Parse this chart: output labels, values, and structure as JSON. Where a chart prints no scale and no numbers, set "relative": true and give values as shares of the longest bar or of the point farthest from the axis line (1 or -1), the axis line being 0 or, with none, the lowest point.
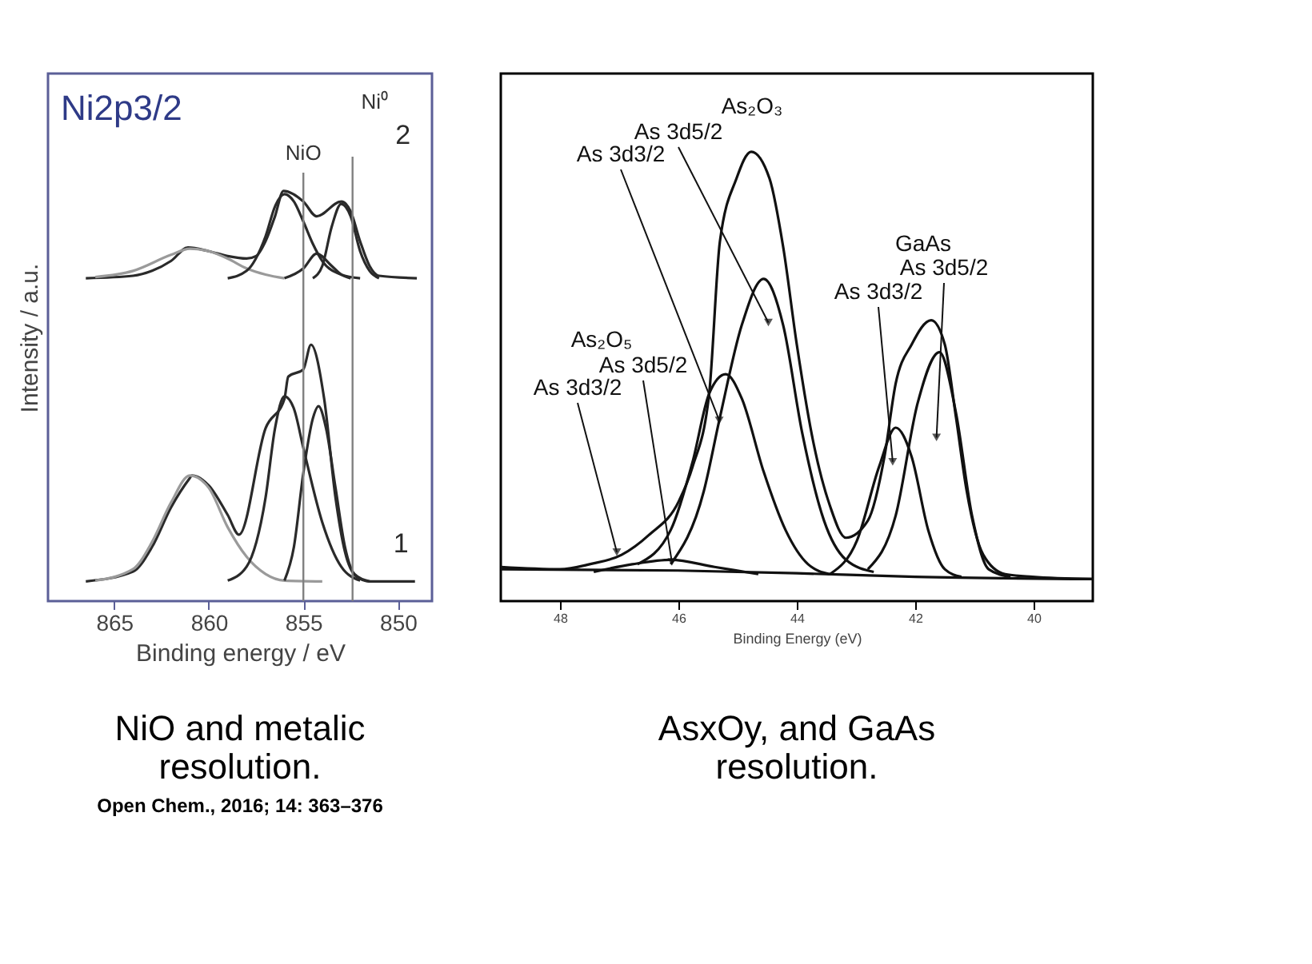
{
  "chart_data": [
    {
      "type": "line",
      "relative": true,
      "xlabel": "Binding energy / eV",
      "ylabel": "Intensity / a.u.",
      "xlim": [
        868.5,
        848.2
      ],
      "xticks": [
        865,
        860,
        855,
        850
      ],
      "grid": false,
      "marker": "none",
      "line_style": "solid",
      "series": [
        {
          "name": "1",
          "color": "#2a2a2a",
          "x": [
            866.5,
            864,
            863,
            862,
            861,
            860.9,
            860,
            859,
            858.4,
            857,
            856,
            855.8,
            855,
            854.6,
            853.9,
            853.3,
            852.8,
            852.2,
            851.5,
            849.1
          ],
          "values": [
            0.048,
            0.072,
            0.132,
            0.228,
            0.3,
            0.306,
            0.282,
            0.21,
            0.162,
            0.421,
            0.493,
            0.547,
            0.565,
            0.625,
            0.493,
            0.252,
            0.12,
            0.06,
            0.048,
            0.048
          ]
        },
        {
          "color": "#9a9a9a",
          "x": [
            866,
            864,
            863,
            862,
            861,
            860,
            859,
            858,
            857,
            856,
            854
          ],
          "values": [
            0.05,
            0.078,
            0.144,
            0.24,
            0.306,
            0.276,
            0.18,
            0.108,
            0.066,
            0.05,
            0.048
          ]
        },
        {
          "color": "#2a2a2a",
          "x": [
            859,
            858,
            857,
            856.5,
            856,
            855.5,
            855,
            854,
            853,
            852
          ],
          "values": [
            0.05,
            0.084,
            0.252,
            0.421,
            0.499,
            0.469,
            0.373,
            0.192,
            0.084,
            0.05
          ]
        },
        {
          "color": "#2a2a2a",
          "x": [
            856,
            855.5,
            855,
            854.5,
            854.2,
            853.8,
            853.3,
            852.8,
            852.3,
            851.5
          ],
          "values": [
            0.05,
            0.132,
            0.313,
            0.445,
            0.475,
            0.421,
            0.276,
            0.132,
            0.066,
            0.048
          ]
        },
        {
          "name": "2",
          "color": "#2a2a2a",
          "x": [
            866.5,
            864,
            863,
            862,
            861.1,
            860,
            859,
            858,
            857.5,
            857,
            856.5,
            856.05,
            855,
            854.3,
            853,
            852.5,
            852,
            851.5,
            851,
            849
          ],
          "values": [
            0.787,
            0.793,
            0.805,
            0.829,
            0.862,
            0.853,
            0.841,
            0.835,
            0.841,
            0.877,
            0.938,
            1.0,
            0.974,
            0.938,
            0.974,
            0.95,
            0.877,
            0.817,
            0.793,
            0.787
          ]
        },
        {
          "color": "#9a9a9a",
          "x": [
            866,
            864,
            862,
            861,
            860,
            859,
            858,
            857,
            856
          ],
          "values": [
            0.79,
            0.805,
            0.844,
            0.859,
            0.853,
            0.835,
            0.811,
            0.796,
            0.787
          ]
        },
        {
          "color": "#2a2a2a",
          "x": [
            859,
            858,
            857,
            856.5,
            856,
            855.5,
            855,
            854.5,
            854,
            853,
            852
          ],
          "values": [
            0.787,
            0.805,
            0.889,
            0.962,
            0.992,
            0.974,
            0.925,
            0.871,
            0.829,
            0.796,
            0.787
          ]
        },
        {
          "color": "#2a2a2a",
          "x": [
            856,
            855,
            854.3,
            853.5,
            853,
            852.5
          ],
          "values": [
            0.787,
            0.811,
            0.847,
            0.817,
            0.796,
            0.787
          ]
        },
        {
          "color": "#2a2a2a",
          "x": [
            854.5,
            854,
            853.5,
            853,
            852.5,
            852,
            851.5,
            851
          ],
          "values": [
            0.787,
            0.817,
            0.913,
            0.968,
            0.938,
            0.853,
            0.805,
            0.787
          ]
        }
      ],
      "ref_lines": [
        {
          "axis": "x",
          "value": 855,
          "label": "NiO",
          "color": "#808080"
        },
        {
          "axis": "x",
          "value": 852.4,
          "label": "Ni⁰",
          "color": "#808080"
        }
      ],
      "annotations": [
        "Ni2p3/2",
        "NiO and metalic\nresolution.",
        "Open Chem., 2016; 14: 363–376"
      ]
    },
    {
      "type": "line",
      "relative": true,
      "xlabel": "Binding Energy (eV)",
      "xlim": [
        49,
        39
      ],
      "xticks": [
        48,
        46,
        44,
        42,
        40
      ],
      "grid": false,
      "marker": "none",
      "line_style": "solid",
      "series": [
        {
          "color": "#111111",
          "x": [
            49,
            48,
            47.5,
            46.96,
            46.5,
            45.99,
            45.76,
            45.48,
            45.3,
            45.02,
            44.77,
            44.46,
            44.23,
            44.0,
            43.72,
            43.44,
            43.17,
            42.8,
            42.52,
            42.33,
            42.06,
            41.73,
            41.5,
            41.31,
            41.13,
            40.85,
            40.48,
            40.02,
            39.0
          ],
          "values": [
            0.076,
            0.071,
            0.082,
            0.103,
            0.147,
            0.223,
            0.299,
            0.462,
            0.799,
            0.94,
            1.0,
            0.94,
            0.788,
            0.571,
            0.353,
            0.212,
            0.141,
            0.179,
            0.321,
            0.484,
            0.571,
            0.625,
            0.571,
            0.408,
            0.245,
            0.103,
            0.06,
            0.054,
            0.049
          ]
        },
        {
          "color": "#111111",
          "x": [
            46.13,
            45.57,
            45.3,
            44.93,
            44.56,
            44.23,
            43.91,
            43.54,
            43.17,
            42.7
          ],
          "values": [
            0.082,
            0.245,
            0.408,
            0.614,
            0.717,
            0.614,
            0.375,
            0.179,
            0.092,
            0.065
          ]
        },
        {
          "color": "#111111",
          "x": [
            46.69,
            46.13,
            45.76,
            45.48,
            45.2,
            44.93,
            44.56,
            44.19,
            43.81,
            43.44
          ],
          "values": [
            0.082,
            0.158,
            0.31,
            0.462,
            0.505,
            0.451,
            0.288,
            0.158,
            0.082,
            0.06
          ]
        },
        {
          "color": "#111111",
          "x": [
            43.44,
            42.98,
            42.61,
            42.33,
            42.06,
            41.78,
            41.5,
            41.22
          ],
          "values": [
            0.06,
            0.136,
            0.299,
            0.386,
            0.321,
            0.158,
            0.071,
            0.054
          ]
        },
        {
          "color": "#111111",
          "x": [
            42.8,
            42.33,
            41.96,
            41.59,
            41.31,
            41.04,
            40.76,
            40.39
          ],
          "values": [
            0.071,
            0.19,
            0.44,
            0.554,
            0.418,
            0.19,
            0.071,
            0.054
          ]
        },
        {
          "color": "#111111",
          "x": [
            47.43,
            46.78,
            46.13,
            45.39,
            44.65
          ],
          "values": [
            0.065,
            0.082,
            0.092,
            0.076,
            0.06
          ]
        },
        {
          "color": "#111111",
          "x": [
            49,
            46,
            44,
            42,
            39
          ],
          "values": [
            0.071,
            0.068,
            0.062,
            0.054,
            0.049
          ]
        }
      ],
      "annotations": [
        "As₂O₃",
        {
          "text": "As 3d5/2",
          "x": 44.48,
          "y": 0.62
        },
        {
          "text": "As 3d3/2",
          "x": 45.31,
          "y": 0.402
        },
        "GaAs",
        {
          "text": "As 3d5/2",
          "x": 41.64,
          "y": 0.364
        },
        {
          "text": "As 3d3/2",
          "x": 42.38,
          "y": 0.31
        },
        "As₂O₅",
        {
          "text": "As 3d5/2",
          "x": 46.11,
          "y": 0.087
        },
        {
          "text": "As 3d3/2",
          "x": 47.04,
          "y": 0.109
        },
        "AsxOy,  and GaAs\nresolution."
      ]
    }
  ]
}
